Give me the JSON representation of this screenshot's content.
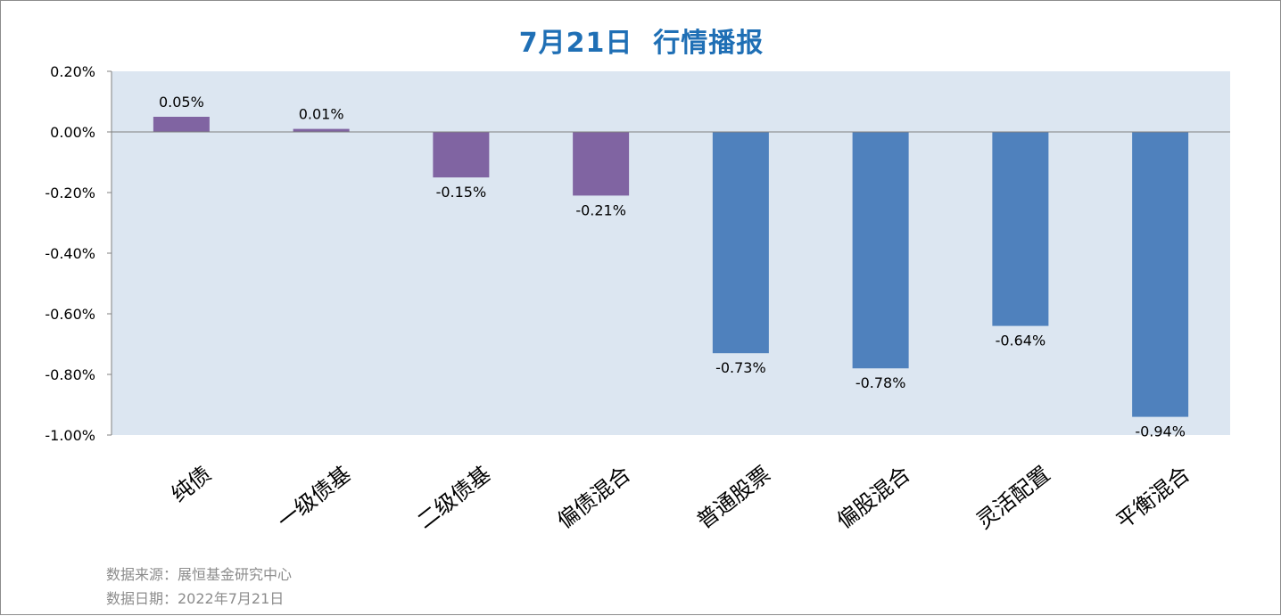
{
  "colors": {
    "positive": "#8064a2",
    "negative": "#4f81bd",
    "plot_bg": "#dce6f1",
    "title": "#1f6fb5",
    "footer": "#8c8c8c"
  },
  "chart_data": {
    "type": "bar",
    "title": "7月21日  行情播报",
    "categories": [
      "纯债",
      "一级债基",
      "二级债基",
      "偏债混合",
      "普通股票",
      "偏股混合",
      "灵活配置",
      "平衡混合"
    ],
    "values": [
      0.05,
      0.01,
      -0.15,
      -0.21,
      -0.73,
      -0.78,
      -0.64,
      -0.94
    ],
    "value_labels": [
      "0.05%",
      "0.01%",
      "-0.15%",
      "-0.21%",
      "-0.73%",
      "-0.78%",
      "-0.64%",
      "-0.94%"
    ],
    "bar_groups": [
      "positive",
      "positive",
      "positive",
      "positive",
      "negative",
      "negative",
      "negative",
      "negative"
    ],
    "yticks": [
      0.2,
      0.0,
      -0.2,
      -0.4,
      -0.6,
      -0.8,
      -1.0
    ],
    "ytick_labels": [
      "0.20%",
      "0.00%",
      "-0.20%",
      "-0.40%",
      "-0.60%",
      "-0.80%",
      "-1.00%"
    ],
    "ylim": [
      -1.0,
      0.2
    ],
    "xlabel": "",
    "ylabel": "",
    "grid": false
  },
  "footer": {
    "source": "数据来源：展恒基金研究中心",
    "date": "数据日期：2022年7月21日"
  }
}
